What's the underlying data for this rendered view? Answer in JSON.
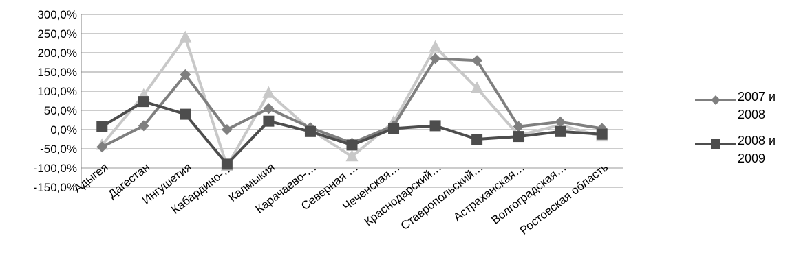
{
  "chart_data": {
    "type": "line",
    "categories": [
      "Адыгея",
      "Дагестан",
      "Ингушетия",
      "Кабардино-…",
      "Калмыкия",
      "Карачаево-…",
      "Северная …",
      "Чеченская…",
      "Краснодарский…",
      "Ставропольский…",
      "Астраханская…",
      "Волгоградская…",
      "Ростовская область"
    ],
    "series": [
      {
        "name": "2007 и 2008",
        "marker": "diamond",
        "color": "#7f7f7f",
        "values": [
          -45,
          10,
          143,
          0,
          55,
          5,
          -35,
          10,
          185,
          180,
          8,
          20,
          3
        ]
      },
      {
        "name": "2008 и 2009",
        "marker": "square",
        "color": "#4d4d4d",
        "values": [
          8,
          73,
          40,
          -90,
          22,
          -5,
          -40,
          3,
          10,
          -25,
          -18,
          -5,
          -12
        ]
      },
      {
        "name": "",
        "marker": "triangle",
        "color": "#c8c8c8",
        "values": [
          -40,
          90,
          240,
          -95,
          95,
          0,
          -70,
          20,
          215,
          108,
          -15,
          12,
          -18
        ]
      }
    ],
    "ylim": [
      -150,
      300
    ],
    "yticks": [
      300,
      250,
      200,
      150,
      100,
      50,
      0,
      -50,
      -100,
      -150
    ],
    "ytick_labels": [
      "300,0%",
      "250,0%",
      "200,0%",
      "150,0%",
      "100,0%",
      "50,0%",
      "0,0%",
      "-50,0%",
      "-100,0%",
      "-150,0%"
    ],
    "grid": true,
    "legend_position": "right"
  },
  "legend": {
    "items": [
      {
        "line1": "2007 и",
        "line2": "2008"
      },
      {
        "line1": "2008 и",
        "line2": "2009"
      }
    ]
  }
}
